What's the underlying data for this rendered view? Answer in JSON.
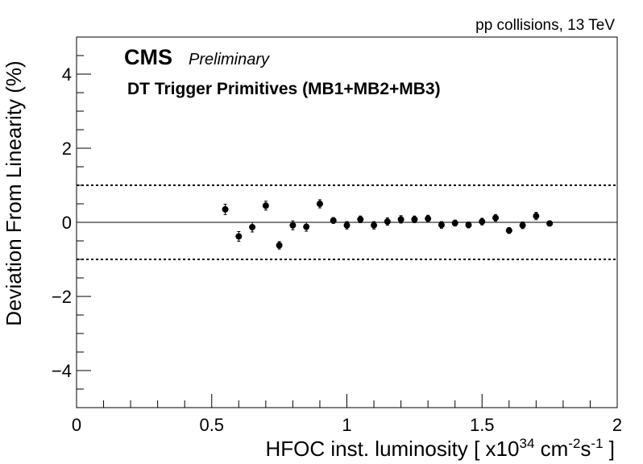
{
  "chart_data": {
    "type": "scatter",
    "energy_label": "pp collisions, 13 TeV",
    "experiment": "CMS",
    "status": "Preliminary",
    "subtitle": "DT Trigger Primitives (MB1+MB2+MB3)",
    "ylabel": "Deviation From Linearity (%)",
    "xlabel": {
      "main": "HFOC inst. luminosity [ x10",
      "exp": "34",
      "unit1": " cm",
      "exp2": "-2",
      "unit2": "s",
      "exp3": "-1",
      "close": " ]"
    },
    "xlim": [
      0,
      2
    ],
    "ylim": [
      -5,
      5
    ],
    "x_ticks": [
      0,
      0.5,
      1,
      1.5,
      2
    ],
    "x_tick_labels": [
      "0",
      "0.5",
      "1",
      "1.5",
      "2"
    ],
    "y_ticks": [
      -4,
      -2,
      0,
      2,
      4
    ],
    "y_tick_labels": [
      "−4",
      "−2",
      "0",
      "2",
      "4"
    ],
    "reference_lines": {
      "solid": 0,
      "dotted": [
        1,
        -1
      ]
    },
    "series": [
      {
        "x": [
          0.55,
          0.6,
          0.65,
          0.7,
          0.75,
          0.8,
          0.85,
          0.9,
          0.95,
          1.0,
          1.05,
          1.1,
          1.15,
          1.2,
          1.25,
          1.3,
          1.35,
          1.4,
          1.45,
          1.5,
          1.55,
          1.6,
          1.65,
          1.7,
          1.75
        ],
        "y": [
          0.35,
          -0.38,
          -0.13,
          0.45,
          -0.62,
          -0.08,
          -0.12,
          0.5,
          0.05,
          -0.08,
          0.08,
          -0.08,
          0.02,
          0.08,
          0.08,
          0.1,
          -0.07,
          -0.02,
          -0.07,
          0.02,
          0.12,
          -0.22,
          -0.08,
          0.17,
          -0.03
        ],
        "err": [
          0.14,
          0.13,
          0.13,
          0.12,
          0.1,
          0.12,
          0.12,
          0.11,
          0.08,
          0.1,
          0.09,
          0.1,
          0.1,
          0.1,
          0.09,
          0.09,
          0.09,
          0.08,
          0.08,
          0.09,
          0.09,
          0.08,
          0.09,
          0.1,
          0.06
        ]
      }
    ]
  }
}
